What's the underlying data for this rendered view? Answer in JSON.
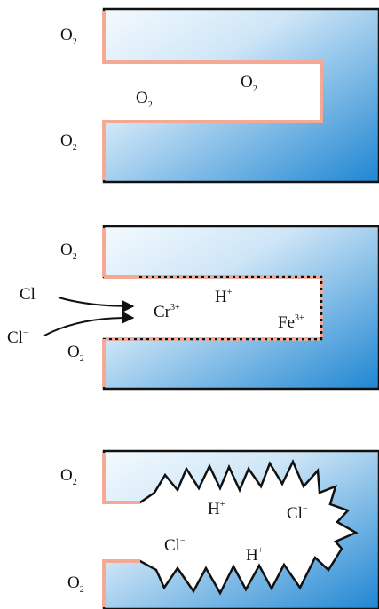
{
  "colors": {
    "metal_light": "#f4fafe",
    "metal_dark": "#1f86d2",
    "oxide_film": "#f4a994",
    "outline": "#111111"
  },
  "panel1": {
    "o2_top": "O",
    "o2_top_sub": "2",
    "o2_bottom": "O",
    "o2_bottom_sub": "2",
    "o2_crevice_1": "O",
    "o2_crevice_1_sub": "2",
    "o2_crevice_2": "O",
    "o2_crevice_2_sub": "2"
  },
  "panel2": {
    "o2_top": "O",
    "o2_top_sub": "2",
    "o2_bottom": "O",
    "o2_bottom_sub": "2",
    "cl_1": "Cl",
    "cl_1_charge": "−",
    "cl_2": "Cl",
    "cl_2_charge": "−",
    "cr": "Cr",
    "cr_charge": "3+",
    "h": "H",
    "h_charge": "+",
    "fe": "Fe",
    "fe_charge": "3+"
  },
  "panel3": {
    "o2_top": "O",
    "o2_top_sub": "2",
    "o2_bottom": "O",
    "o2_bottom_sub": "2",
    "h_1": "H",
    "h_1_charge": "+",
    "cl_1": "Cl",
    "cl_1_charge": "−",
    "cl_2": "Cl",
    "cl_2_charge": "−",
    "h_2": "H",
    "h_2_charge": "+"
  }
}
